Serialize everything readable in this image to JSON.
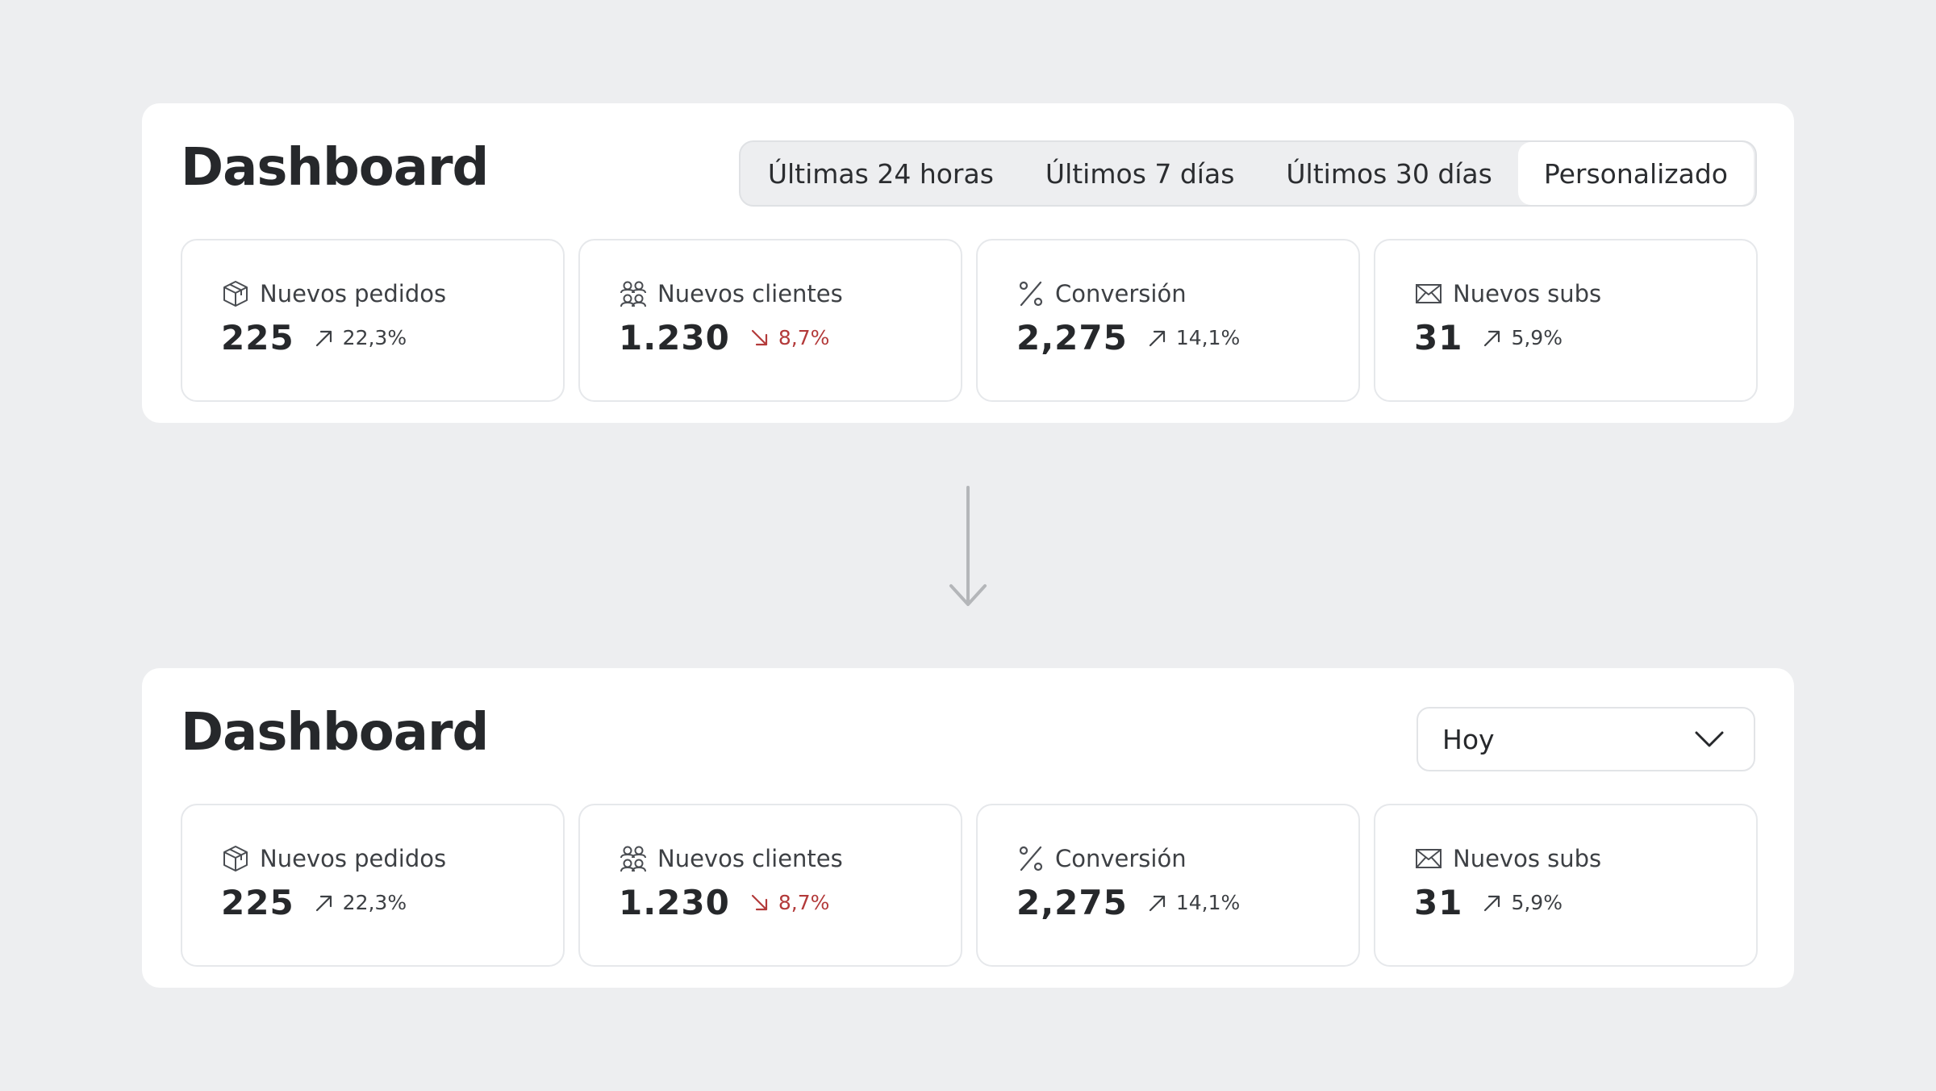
{
  "top": {
    "title": "Dashboard",
    "ranges": [
      "Últimas 24 horas",
      "Últimos 7 días",
      "Últimos 30 días",
      "Personalizado"
    ],
    "active_range": "Personalizado"
  },
  "bottom": {
    "title": "Dashboard",
    "select_value": "Hoy"
  },
  "metrics": [
    {
      "icon": "package-icon",
      "label": "Nuevos pedidos",
      "value": "225",
      "change": "22,3%",
      "direction": "up"
    },
    {
      "icon": "users-icon",
      "label": "Nuevos clientes",
      "value": "1.230",
      "change": "8,7%",
      "direction": "down"
    },
    {
      "icon": "percent-icon",
      "label": "Conversión",
      "value": "2,275",
      "change": "14,1%",
      "direction": "up"
    },
    {
      "icon": "mail-icon",
      "label": "Nuevos subs",
      "value": "31",
      "change": "5,9%",
      "direction": "up"
    }
  ],
  "colors": {
    "background": "#edeef0",
    "panel": "#ffffff",
    "text": "#26282b",
    "negative": "#b33a3a",
    "arrow": "#b4b6b9"
  }
}
